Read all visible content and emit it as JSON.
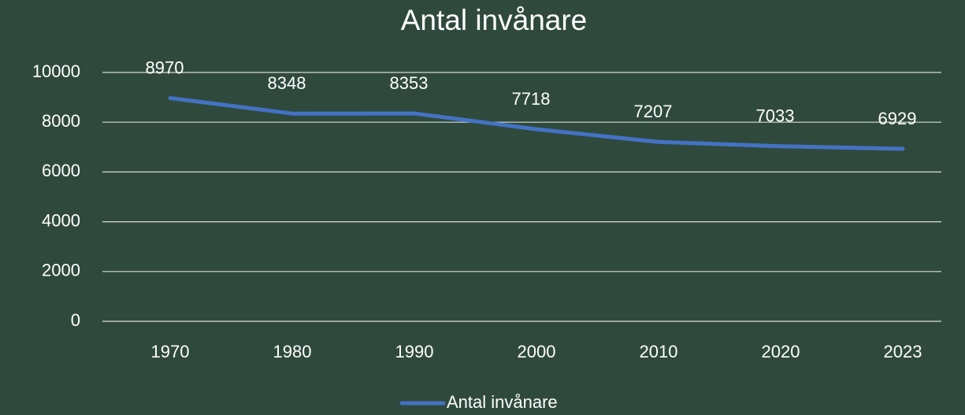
{
  "chart_data": {
    "type": "line",
    "title": "Antal invånare",
    "categories": [
      "1970",
      "1980",
      "1990",
      "2000",
      "2010",
      "2020",
      "2023"
    ],
    "series": [
      {
        "name": "Antal invånare",
        "color": "#4472c4",
        "values": [
          8970,
          8348,
          8353,
          7718,
          7207,
          7033,
          6929
        ]
      }
    ],
    "ylim": [
      0,
      10000
    ],
    "yticks": [
      0,
      2000,
      4000,
      6000,
      8000,
      10000
    ],
    "grid": true,
    "legend": "bottom"
  }
}
